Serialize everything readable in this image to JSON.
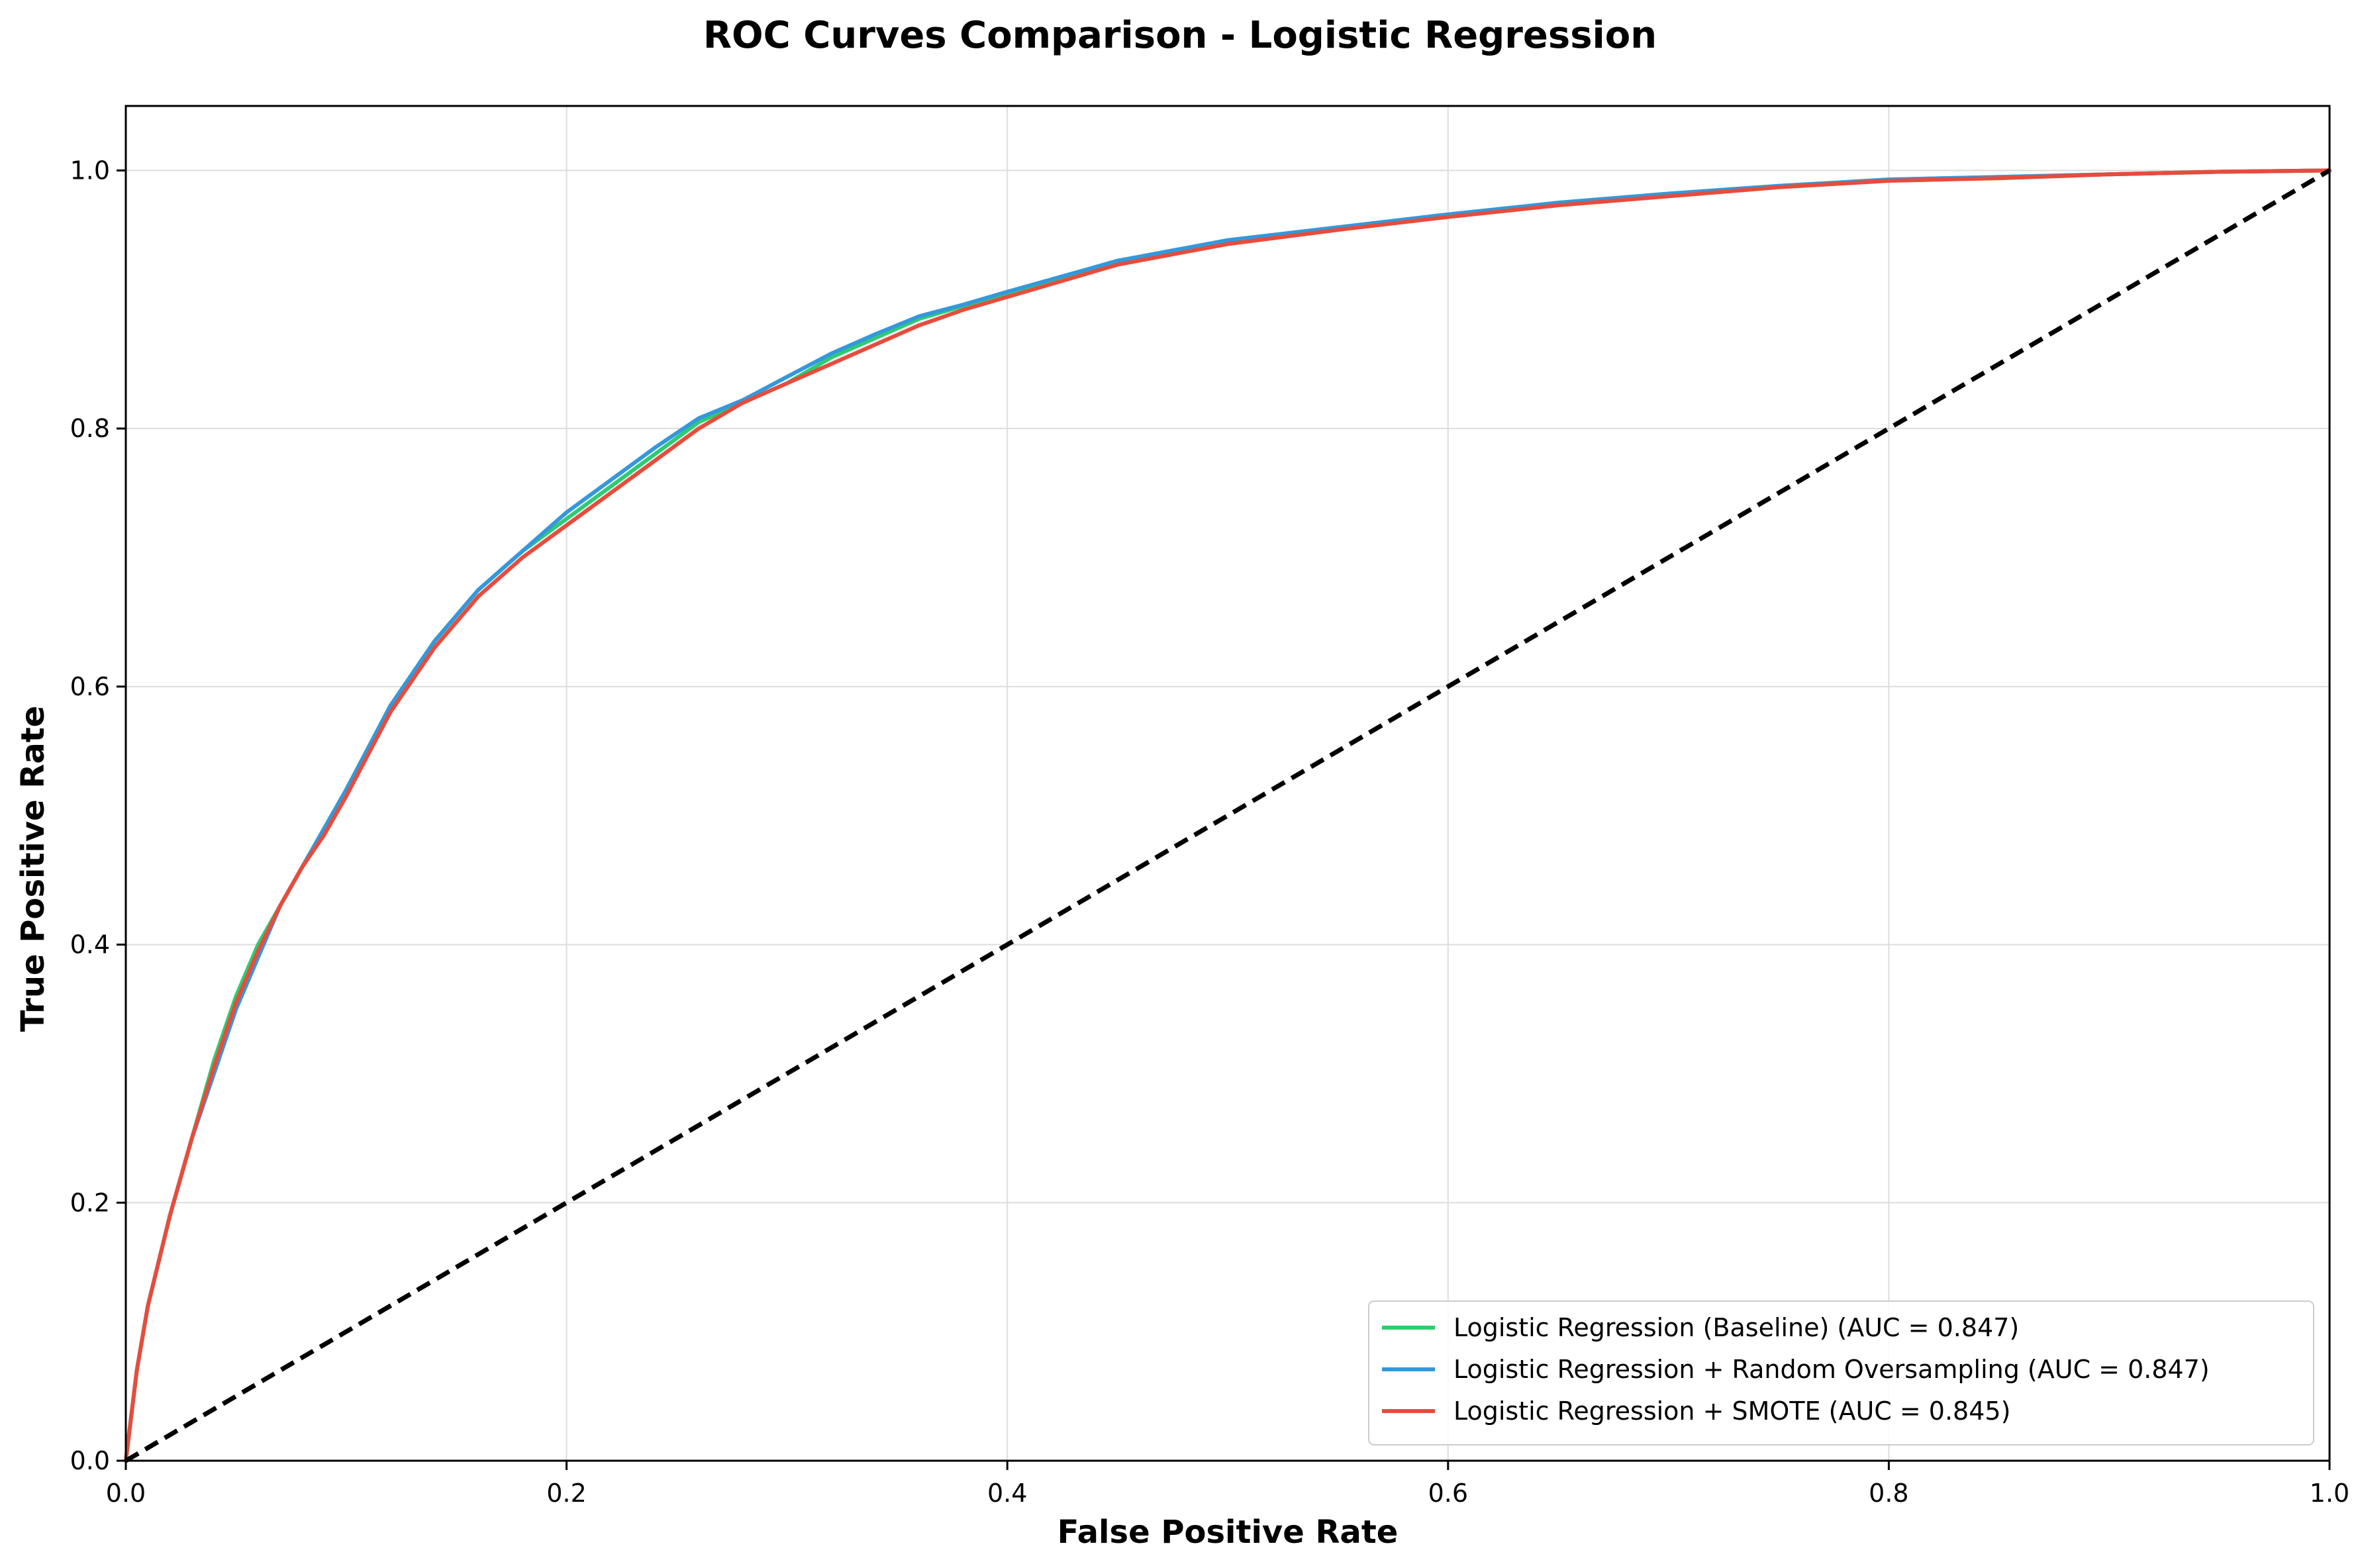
{
  "chart_data": {
    "type": "line",
    "title": "ROC Curves Comparison - Logistic Regression",
    "xlabel": "False Positive Rate",
    "ylabel": "True Positive Rate",
    "xlim": [
      0.0,
      1.0
    ],
    "ylim": [
      0.0,
      1.05
    ],
    "xticks": [
      "0.0",
      "0.2",
      "0.4",
      "0.6",
      "0.8",
      "1.0"
    ],
    "yticks": [
      "0.0",
      "0.2",
      "0.4",
      "0.6",
      "0.8",
      "1.0"
    ],
    "grid": true,
    "legend_position": "lower-right",
    "series": [
      {
        "name": "Logistic Regression (Baseline) (AUC = 0.847)",
        "color": "#2ecc71",
        "x": [
          0.0,
          0.005,
          0.01,
          0.02,
          0.03,
          0.04,
          0.05,
          0.06,
          0.07,
          0.08,
          0.09,
          0.1,
          0.12,
          0.14,
          0.16,
          0.18,
          0.2,
          0.22,
          0.24,
          0.26,
          0.28,
          0.3,
          0.32,
          0.34,
          0.36,
          0.38,
          0.4,
          0.45,
          0.5,
          0.55,
          0.6,
          0.65,
          0.7,
          0.75,
          0.8,
          0.85,
          0.9,
          0.95,
          1.0
        ],
        "y": [
          0.0,
          0.07,
          0.12,
          0.19,
          0.25,
          0.31,
          0.36,
          0.4,
          0.43,
          0.46,
          0.49,
          0.52,
          0.585,
          0.635,
          0.675,
          0.705,
          0.73,
          0.755,
          0.78,
          0.805,
          0.82,
          0.835,
          0.855,
          0.87,
          0.885,
          0.895,
          0.905,
          0.93,
          0.945,
          0.955,
          0.965,
          0.975,
          0.982,
          0.988,
          0.993,
          0.995,
          0.997,
          0.999,
          1.0
        ]
      },
      {
        "name": "Logistic Regression + Random Oversampling (AUC = 0.847)",
        "color": "#3498db",
        "x": [
          0.0,
          0.005,
          0.01,
          0.02,
          0.03,
          0.04,
          0.05,
          0.06,
          0.07,
          0.08,
          0.09,
          0.1,
          0.12,
          0.14,
          0.16,
          0.18,
          0.2,
          0.22,
          0.24,
          0.26,
          0.28,
          0.3,
          0.32,
          0.34,
          0.36,
          0.38,
          0.4,
          0.45,
          0.5,
          0.55,
          0.6,
          0.65,
          0.7,
          0.75,
          0.8,
          0.85,
          0.9,
          0.95,
          1.0
        ],
        "y": [
          0.0,
          0.07,
          0.12,
          0.19,
          0.25,
          0.3,
          0.35,
          0.39,
          0.43,
          0.46,
          0.49,
          0.52,
          0.585,
          0.635,
          0.675,
          0.705,
          0.735,
          0.76,
          0.785,
          0.808,
          0.822,
          0.84,
          0.858,
          0.873,
          0.887,
          0.896,
          0.906,
          0.93,
          0.946,
          0.956,
          0.966,
          0.975,
          0.982,
          0.988,
          0.993,
          0.995,
          0.997,
          0.999,
          1.0
        ]
      },
      {
        "name": "Logistic Regression + SMOTE (AUC = 0.845)",
        "color": "#e74c3c",
        "x": [
          0.0,
          0.005,
          0.01,
          0.02,
          0.03,
          0.04,
          0.05,
          0.06,
          0.07,
          0.08,
          0.09,
          0.1,
          0.12,
          0.14,
          0.16,
          0.18,
          0.2,
          0.22,
          0.24,
          0.26,
          0.28,
          0.3,
          0.32,
          0.34,
          0.36,
          0.38,
          0.4,
          0.45,
          0.5,
          0.55,
          0.6,
          0.65,
          0.7,
          0.75,
          0.8,
          0.85,
          0.9,
          0.95,
          1.0
        ],
        "y": [
          0.0,
          0.07,
          0.12,
          0.19,
          0.25,
          0.305,
          0.355,
          0.395,
          0.43,
          0.46,
          0.485,
          0.515,
          0.58,
          0.63,
          0.67,
          0.7,
          0.725,
          0.75,
          0.775,
          0.8,
          0.82,
          0.835,
          0.85,
          0.865,
          0.88,
          0.892,
          0.902,
          0.927,
          0.943,
          0.954,
          0.964,
          0.973,
          0.98,
          0.987,
          0.992,
          0.994,
          0.997,
          0.999,
          1.0
        ]
      },
      {
        "name": "",
        "color": "#000000",
        "style": "dashed",
        "x": [
          0.0,
          1.0
        ],
        "y": [
          0.0,
          1.0
        ]
      }
    ]
  }
}
